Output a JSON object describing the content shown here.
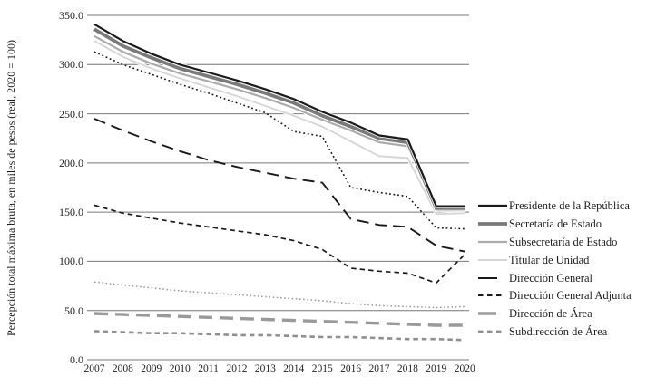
{
  "figure": {
    "ylabel": "Percepción total máxima bruta, en miles de pesos (real, 2020 = 100)"
  },
  "chart_data": {
    "type": "line",
    "x": [
      2007,
      2008,
      2009,
      2010,
      2011,
      2012,
      2013,
      2014,
      2015,
      2016,
      2017,
      2018,
      2019,
      2020
    ],
    "x_tick_labels": [
      "2007",
      "2008",
      "2009",
      "2010",
      "2011",
      "2012",
      "2013",
      "2014",
      "2015",
      "2016",
      "2017",
      "2018",
      "2019",
      "2020"
    ],
    "ylim": [
      0,
      350
    ],
    "y_tick_values": [
      350,
      300,
      250,
      200,
      150,
      100,
      50,
      0
    ],
    "y_tick_labels": [
      "350.0",
      "300.0",
      "250.0",
      "200.0",
      "150.0",
      "100.0",
      "50.0",
      "0.0"
    ],
    "grid": "horizontal",
    "grid_color": "#777777",
    "legend_position": "right-outside",
    "ylabel": "Percepción total máxima bruta, en miles de pesos (real, 2020 = 100)",
    "series": [
      {
        "name": "dotted-gray-line",
        "legend_label": null,
        "in_legend": false,
        "color": "#9a9a9a",
        "width": 1.5,
        "dash": "1.6 2.6",
        "halo": false,
        "values": [
          79,
          76,
          73,
          70,
          68,
          66,
          64,
          62,
          60,
          57,
          55,
          54,
          53,
          54
        ]
      },
      {
        "name": "direccion-de-area",
        "legend_label": "Dirección de Área",
        "in_legend": true,
        "color": "#9a9a9a",
        "width": 3.4,
        "dash": "15 8",
        "halo": false,
        "values": [
          47,
          46,
          45,
          44,
          43,
          42,
          41,
          40,
          39,
          38,
          37,
          36,
          35,
          35
        ]
      },
      {
        "name": "subdireccion-de-area",
        "legend_label": "Subdirección de Área",
        "in_legend": true,
        "color": "#8f8f8f",
        "width": 2.6,
        "dash": "5.5 4",
        "halo": false,
        "values": [
          29,
          28,
          27,
          27,
          26,
          25,
          25,
          24,
          23,
          23,
          22,
          21,
          21,
          20
        ]
      },
      {
        "name": "dotted-black-line",
        "legend_label": null,
        "in_legend": false,
        "color": "#1a1a1a",
        "width": 1.6,
        "dash": "1.8 2.8",
        "halo": false,
        "values": [
          313,
          300,
          290,
          280,
          271,
          261,
          251,
          232,
          227,
          175,
          170,
          166,
          134,
          133
        ]
      },
      {
        "name": "direccion-general",
        "legend_label": "Dirección General",
        "in_legend": true,
        "color": "#1a1a1a",
        "width": 1.9,
        "dash": "13 7",
        "halo": false,
        "values": [
          245,
          233,
          222,
          212,
          203,
          196,
          190,
          184,
          180,
          143,
          137,
          135,
          116,
          110
        ]
      },
      {
        "name": "direccion-general-adjunta",
        "legend_label": "Dirección General Adjunta",
        "in_legend": true,
        "color": "#1a1a1a",
        "width": 1.7,
        "dash": "5.5 4",
        "halo": false,
        "values": [
          157,
          149,
          144,
          139,
          135,
          131,
          127,
          121,
          112,
          93,
          90,
          88,
          78,
          107
        ]
      },
      {
        "name": "titular-de-unidad",
        "legend_label": "Titular de Unidad",
        "in_legend": true,
        "color": "#d6d6d6",
        "width": 1.9,
        "dash": "",
        "halo": true,
        "values": [
          324,
          308,
          296,
          286,
          277,
          268,
          258,
          248,
          237,
          222,
          207,
          205,
          148,
          149
        ]
      },
      {
        "name": "subsecretaria-de-estado",
        "legend_label": "Subsecretaría de Estado",
        "in_legend": true,
        "color": "#ababab",
        "width": 2.2,
        "dash": "",
        "halo": true,
        "values": [
          329,
          313,
          301,
          291,
          283,
          275,
          266,
          256,
          244,
          233,
          221,
          217,
          152,
          152
        ]
      },
      {
        "name": "secretaria-de-estado",
        "legend_label": "Secretaría de Estado",
        "in_legend": true,
        "color": "#7a7a7a",
        "width": 3.8,
        "dash": "",
        "halo": true,
        "values": [
          336,
          319,
          307,
          296,
          288,
          280,
          271,
          261,
          248,
          237,
          225,
          221,
          154,
          154
        ]
      },
      {
        "name": "presidente-de-la-republica",
        "legend_label": "Presidente de la República",
        "in_legend": true,
        "color": "#1a1a1a",
        "width": 2.2,
        "dash": "",
        "halo": true,
        "values": [
          341,
          324,
          311,
          300,
          292,
          284,
          275,
          265,
          252,
          241,
          228,
          224,
          156,
          156
        ]
      }
    ],
    "legend": [
      {
        "label": "Presidente de la República",
        "color": "#1a1a1a",
        "width": 2.2,
        "dash": "",
        "sample_len": 32
      },
      {
        "label": "Secretaría de Estado",
        "color": "#7a7a7a",
        "width": 3.8,
        "dash": "",
        "sample_len": 32
      },
      {
        "label": "Subsecretaría de Estado",
        "color": "#ababab",
        "width": 2.2,
        "dash": "",
        "sample_len": 32
      },
      {
        "label": "Titular de Unidad",
        "color": "#d6d6d6",
        "width": 1.9,
        "dash": "",
        "sample_len": 32
      },
      {
        "label": "Dirección General",
        "color": "#1a1a1a",
        "width": 2.1,
        "dash": "",
        "sample_len": 21
      },
      {
        "label": "Dirección General Adjunta",
        "color": "#1a1a1a",
        "width": 2.1,
        "dash": "5.5 4.5",
        "sample_len": 26
      },
      {
        "label": "Dirección de Área",
        "color": "#9a9a9a",
        "width": 3.6,
        "dash": "",
        "sample_len": 20
      },
      {
        "label": "Subdirección de Área",
        "color": "#8f8f8f",
        "width": 2.8,
        "dash": "5.5 4.5",
        "sample_len": 26
      }
    ]
  }
}
